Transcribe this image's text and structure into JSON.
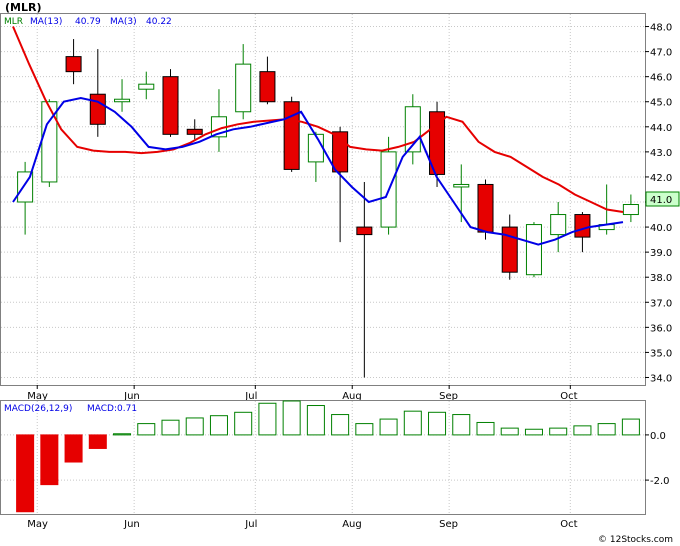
{
  "header": {
    "title": "(MLR)",
    "watermark": "© 12Stocks.com"
  },
  "chart_data": [
    {
      "type": "candlestick",
      "legend": [
        {
          "label": "MLR",
          "color": "#008000"
        },
        {
          "label": "MA(13)",
          "value": "40.79",
          "color": "#e60000"
        },
        {
          "label": "MA(3)",
          "value": "40.22",
          "color": "#0000e6"
        }
      ],
      "y_ticks": [
        "34.0",
        "35.0",
        "36.0",
        "37.0",
        "38.0",
        "39.0",
        "40.0",
        "41.0",
        "42.0",
        "43.0",
        "44.0",
        "45.0",
        "46.0",
        "47.0",
        "48.0"
      ],
      "ylim": [
        33.7,
        48.5
      ],
      "last_price": "41.0",
      "x_labels": [
        "May",
        "Jun",
        "Jul",
        "Aug",
        "Sep",
        "Oct"
      ],
      "candles": [
        {
          "o": 41.0,
          "h": 42.6,
          "l": 39.7,
          "c": 42.2
        },
        {
          "o": 41.8,
          "h": 45.1,
          "l": 41.6,
          "c": 45.0
        },
        {
          "o": 46.8,
          "h": 47.5,
          "l": 45.7,
          "c": 46.2
        },
        {
          "o": 45.3,
          "h": 47.1,
          "l": 43.6,
          "c": 44.1
        },
        {
          "o": 45.0,
          "h": 45.9,
          "l": 44.6,
          "c": 45.1
        },
        {
          "o": 45.5,
          "h": 46.2,
          "l": 45.1,
          "c": 45.7
        },
        {
          "o": 46.0,
          "h": 46.3,
          "l": 43.6,
          "c": 43.7
        },
        {
          "o": 43.9,
          "h": 44.3,
          "l": 43.5,
          "c": 43.7
        },
        {
          "o": 43.6,
          "h": 45.5,
          "l": 43.0,
          "c": 44.4
        },
        {
          "o": 44.6,
          "h": 47.3,
          "l": 44.3,
          "c": 46.5
        },
        {
          "o": 46.2,
          "h": 46.8,
          "l": 44.9,
          "c": 45.0
        },
        {
          "o": 45.0,
          "h": 45.2,
          "l": 42.2,
          "c": 42.3
        },
        {
          "o": 42.6,
          "h": 43.8,
          "l": 41.8,
          "c": 43.7
        },
        {
          "o": 43.8,
          "h": 44.0,
          "l": 39.4,
          "c": 42.2
        },
        {
          "o": 40.0,
          "h": 41.8,
          "l": 34.0,
          "c": 39.7
        },
        {
          "o": 40.0,
          "h": 43.6,
          "l": 39.7,
          "c": 43.0
        },
        {
          "o": 43.0,
          "h": 45.3,
          "l": 42.5,
          "c": 44.8
        },
        {
          "o": 44.6,
          "h": 45.0,
          "l": 41.6,
          "c": 42.1
        },
        {
          "o": 41.6,
          "h": 42.5,
          "l": 40.2,
          "c": 41.7
        },
        {
          "o": 41.7,
          "h": 41.9,
          "l": 39.5,
          "c": 39.8
        },
        {
          "o": 40.0,
          "h": 40.5,
          "l": 37.9,
          "c": 38.2
        },
        {
          "o": 38.1,
          "h": 40.2,
          "l": 38.0,
          "c": 40.1
        },
        {
          "o": 39.7,
          "h": 41.0,
          "l": 39.0,
          "c": 40.5
        },
        {
          "o": 40.5,
          "h": 40.6,
          "l": 39.0,
          "c": 39.6
        },
        {
          "o": 39.9,
          "h": 41.7,
          "l": 39.7,
          "c": 40.1
        },
        {
          "o": 40.5,
          "h": 41.3,
          "l": 40.2,
          "c": 40.9
        }
      ],
      "ma13": [
        48.0,
        46.5,
        45.1,
        43.9,
        43.2,
        43.05,
        43.0,
        43.0,
        42.95,
        43.0,
        43.1,
        43.35,
        43.7,
        43.95,
        44.1,
        44.2,
        44.25,
        44.3,
        44.2,
        44.0,
        43.7,
        43.2,
        43.1,
        43.05,
        43.2,
        43.4,
        43.9,
        44.4,
        44.2,
        43.4,
        43.0,
        42.8,
        42.4,
        42.0,
        41.7,
        41.3,
        41.0,
        40.7,
        40.6
      ],
      "ma3": [
        41.0,
        42.0,
        44.1,
        45.0,
        45.15,
        45.0,
        44.6,
        44.0,
        43.2,
        43.1,
        43.2,
        43.4,
        43.7,
        43.9,
        44.0,
        44.15,
        44.3,
        44.6,
        43.5,
        42.3,
        41.6,
        41.0,
        41.2,
        42.8,
        43.6,
        42.0,
        41.0,
        40.0,
        39.8,
        39.7,
        39.5,
        39.3,
        39.5,
        39.8,
        40.0,
        40.1,
        40.2
      ],
      "ma_x_count": 26
    },
    {
      "type": "bar",
      "title": "MACD(26,12,9)",
      "value_label": "MACD:0.71",
      "y_ticks": [
        "0.0",
        "-2.0"
      ],
      "ylim": [
        -3.5,
        1.5
      ],
      "x_labels": [
        "May",
        "Jun",
        "Jul",
        "Aug",
        "Sep",
        "Oct"
      ],
      "values": [
        -3.4,
        -2.2,
        -1.2,
        -0.6,
        0.05,
        0.5,
        0.65,
        0.75,
        0.85,
        1.0,
        1.4,
        1.5,
        1.3,
        0.9,
        0.5,
        0.7,
        1.05,
        1.0,
        0.9,
        0.55,
        0.3,
        0.25,
        0.3,
        0.4,
        0.5,
        0.7
      ]
    }
  ]
}
